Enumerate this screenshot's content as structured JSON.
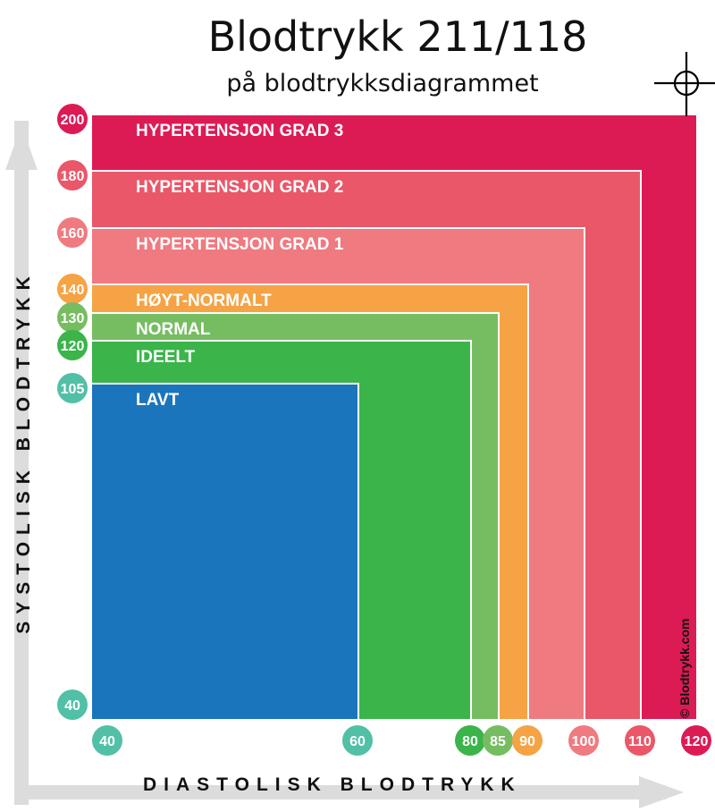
{
  "chart_data": {
    "type": "area",
    "title": "Blodtrykk 211/118",
    "subtitle": "på blodtrykksdiagrammet",
    "xlabel": "DIASTOLISK BLODTRYKK",
    "ylabel": "SYSTOLISK BLODTRYKK",
    "xlim": [
      40,
      120
    ],
    "ylim": [
      40,
      200
    ],
    "x_ticks": [
      40,
      60,
      80,
      85,
      90,
      100,
      110,
      120
    ],
    "y_ticks": [
      200,
      180,
      160,
      140,
      130,
      120,
      105,
      40
    ],
    "zones": [
      {
        "name": "HYPERTENSJON GRAD 3",
        "max_diastolic": 120,
        "max_systolic": 200,
        "color": "#dc1b55"
      },
      {
        "name": "HYPERTENSJON GRAD 2",
        "max_diastolic": 110,
        "max_systolic": 180,
        "color": "#ea5768"
      },
      {
        "name": "HYPERTENSJON GRAD 1",
        "max_diastolic": 100,
        "max_systolic": 160,
        "color": "#ef7a80"
      },
      {
        "name": "HØYT-NORMALT",
        "max_diastolic": 90,
        "max_systolic": 140,
        "color": "#f5a345"
      },
      {
        "name": "NORMAL",
        "max_diastolic": 85,
        "max_systolic": 130,
        "color": "#76bd62"
      },
      {
        "name": "IDEELT",
        "max_diastolic": 80,
        "max_systolic": 120,
        "color": "#3bb44a"
      },
      {
        "name": "LAVT",
        "max_diastolic": 60,
        "max_systolic": 105,
        "color": "#1b75bc"
      }
    ],
    "x_tick_colors": {
      "40": "#52c0a6",
      "60": "#52c0a6",
      "80": "#3bb44a",
      "85": "#76bd62",
      "90": "#f5a345",
      "100": "#ef7a80",
      "110": "#ea5768",
      "120": "#dc1b55"
    },
    "y_tick_colors": {
      "200": "#dc1b55",
      "180": "#ea5768",
      "160": "#ef7a80",
      "140": "#f5a345",
      "130": "#76bd62",
      "120": "#3bb44a",
      "105": "#52c0a6",
      "40": "#52c0a6"
    },
    "marker": {
      "systolic": 211,
      "diastolic": 118,
      "icon": "crosshair-icon"
    },
    "credit": "© Blodtrykk.com",
    "grid": false,
    "legend": "none"
  }
}
